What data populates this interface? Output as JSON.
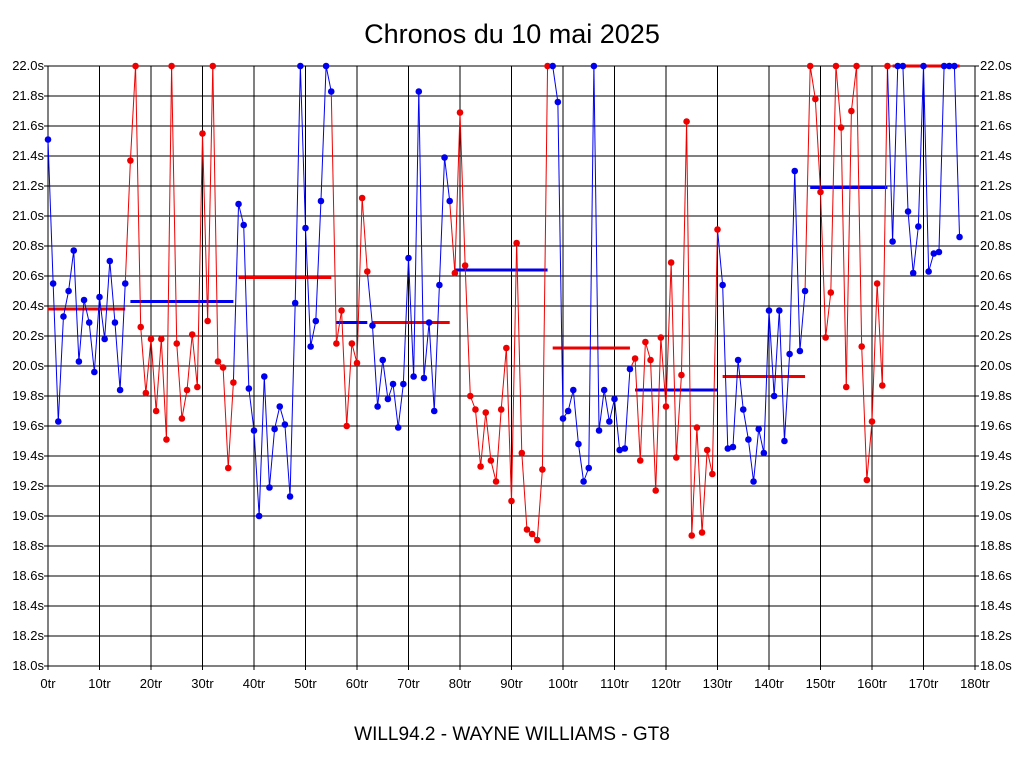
{
  "chart_data": {
    "type": "line",
    "title": "Chronos du 10 mai 2025",
    "footer": "WILL94.2 - WAYNE WILLIAMS - GT8",
    "xlim": [
      0,
      180
    ],
    "ylim": [
      18.0,
      22.0
    ],
    "x_ticks": [
      0,
      10,
      20,
      30,
      40,
      50,
      60,
      70,
      80,
      90,
      100,
      110,
      120,
      130,
      140,
      150,
      160,
      170,
      180
    ],
    "x_tick_labels": [
      "0tr",
      "10tr",
      "20tr",
      "30tr",
      "40tr",
      "50tr",
      "60tr",
      "70tr",
      "80tr",
      "90tr",
      "100tr",
      "110tr",
      "120tr",
      "130tr",
      "140tr",
      "150tr",
      "160tr",
      "170tr",
      "180tr"
    ],
    "y_ticks": [
      18.0,
      18.2,
      18.4,
      18.6,
      18.8,
      19.0,
      19.2,
      19.4,
      19.6,
      19.8,
      20.0,
      20.2,
      20.4,
      20.6,
      20.8,
      21.0,
      21.2,
      21.4,
      21.6,
      21.8,
      22.0
    ],
    "y_tick_labels": [
      "18.0s",
      "18.2s",
      "18.4s",
      "18.6s",
      "18.8s",
      "19.0s",
      "19.2s",
      "19.4s",
      "19.6s",
      "19.8s",
      "20.0s",
      "20.2s",
      "20.4s",
      "20.6s",
      "20.8s",
      "21.0s",
      "21.2s",
      "21.4s",
      "21.6s",
      "21.8s",
      "22.0s"
    ],
    "grid": true,
    "colors": {
      "blue": "#0000ee",
      "red": "#ee0000",
      "grid": "#000000"
    },
    "series": [
      {
        "name": "stint-1",
        "color": "blue",
        "points": [
          [
            0,
            21.51
          ],
          [
            1,
            20.55
          ],
          [
            2,
            19.63
          ],
          [
            3,
            20.33
          ],
          [
            4,
            20.5
          ],
          [
            5,
            20.77
          ],
          [
            6,
            20.03
          ],
          [
            7,
            20.44
          ],
          [
            8,
            20.29
          ],
          [
            9,
            19.96
          ],
          [
            10,
            20.46
          ],
          [
            11,
            20.18
          ],
          [
            12,
            20.7
          ],
          [
            13,
            20.29
          ],
          [
            14,
            19.84
          ],
          [
            15,
            20.55
          ]
        ]
      },
      {
        "name": "stint-2",
        "color": "red",
        "points": [
          [
            16,
            21.37
          ],
          [
            17,
            22.0
          ],
          [
            18,
            20.26
          ],
          [
            19,
            19.82
          ],
          [
            20,
            20.18
          ],
          [
            21,
            19.7
          ],
          [
            22,
            20.18
          ],
          [
            23,
            19.51
          ],
          [
            24,
            22.0
          ],
          [
            25,
            20.15
          ],
          [
            26,
            19.65
          ],
          [
            27,
            19.84
          ],
          [
            28,
            20.21
          ],
          [
            29,
            19.86
          ],
          [
            30,
            21.55
          ],
          [
            31,
            20.3
          ],
          [
            32,
            22.0
          ],
          [
            33,
            20.03
          ],
          [
            34,
            19.99
          ],
          [
            35,
            19.32
          ],
          [
            36,
            19.89
          ]
        ]
      },
      {
        "name": "stint-3",
        "color": "blue",
        "points": [
          [
            37,
            21.08
          ],
          [
            38,
            20.94
          ],
          [
            39,
            19.85
          ],
          [
            40,
            19.57
          ],
          [
            41,
            19.0
          ],
          [
            42,
            19.93
          ],
          [
            43,
            19.19
          ],
          [
            44,
            19.58
          ],
          [
            45,
            19.73
          ],
          [
            46,
            19.61
          ],
          [
            47,
            19.13
          ],
          [
            48,
            20.42
          ],
          [
            49,
            22.0
          ],
          [
            50,
            20.92
          ],
          [
            51,
            20.13
          ],
          [
            52,
            20.3
          ],
          [
            53,
            21.1
          ],
          [
            54,
            22.0
          ],
          [
            55,
            21.83
          ]
        ]
      },
      {
        "name": "stint-4",
        "color": "red",
        "points": [
          [
            56,
            20.15
          ],
          [
            57,
            20.37
          ],
          [
            58,
            19.6
          ],
          [
            59,
            20.15
          ],
          [
            60,
            20.02
          ],
          [
            61,
            21.12
          ],
          [
            62,
            20.63
          ]
        ]
      },
      {
        "name": "stint-5",
        "color": "blue",
        "points": [
          [
            63,
            20.27
          ],
          [
            64,
            19.73
          ],
          [
            65,
            20.04
          ],
          [
            66,
            19.78
          ],
          [
            67,
            19.88
          ],
          [
            68,
            19.59
          ],
          [
            69,
            19.88
          ],
          [
            70,
            20.72
          ],
          [
            71,
            19.93
          ],
          [
            72,
            21.83
          ],
          [
            73,
            19.92
          ],
          [
            74,
            20.29
          ],
          [
            75,
            19.7
          ],
          [
            76,
            20.54
          ],
          [
            77,
            21.39
          ],
          [
            78,
            21.1
          ]
        ]
      },
      {
        "name": "stint-6",
        "color": "red",
        "points": [
          [
            79,
            20.62
          ],
          [
            80,
            21.69
          ],
          [
            81,
            20.67
          ],
          [
            82,
            19.8
          ],
          [
            83,
            19.71
          ],
          [
            84,
            19.33
          ],
          [
            85,
            19.69
          ],
          [
            86,
            19.37
          ],
          [
            87,
            19.23
          ],
          [
            88,
            19.71
          ],
          [
            89,
            20.12
          ],
          [
            90,
            19.1
          ],
          [
            91,
            20.82
          ],
          [
            92,
            19.42
          ],
          [
            93,
            18.91
          ],
          [
            94,
            18.88
          ],
          [
            95,
            18.84
          ],
          [
            96,
            19.31
          ],
          [
            97,
            22.0
          ]
        ]
      },
      {
        "name": "stint-7",
        "color": "blue",
        "points": [
          [
            98,
            22.0
          ],
          [
            99,
            21.76
          ],
          [
            100,
            19.65
          ],
          [
            101,
            19.7
          ],
          [
            102,
            19.84
          ],
          [
            103,
            19.48
          ],
          [
            104,
            19.23
          ],
          [
            105,
            19.32
          ],
          [
            106,
            22.0
          ],
          [
            107,
            19.57
          ],
          [
            108,
            19.84
          ],
          [
            109,
            19.63
          ],
          [
            110,
            19.78
          ],
          [
            111,
            19.44
          ],
          [
            112,
            19.45
          ],
          [
            113,
            19.98
          ]
        ]
      },
      {
        "name": "stint-8",
        "color": "red",
        "points": [
          [
            114,
            20.05
          ],
          [
            115,
            19.37
          ],
          [
            116,
            20.16
          ],
          [
            117,
            20.04
          ],
          [
            118,
            19.17
          ],
          [
            119,
            20.19
          ],
          [
            120,
            19.73
          ],
          [
            121,
            20.69
          ],
          [
            122,
            19.39
          ],
          [
            123,
            19.94
          ],
          [
            124,
            21.63
          ],
          [
            125,
            18.87
          ],
          [
            126,
            19.59
          ],
          [
            127,
            18.89
          ],
          [
            128,
            19.44
          ],
          [
            129,
            19.28
          ],
          [
            130,
            20.91
          ]
        ]
      },
      {
        "name": "stint-9",
        "color": "blue",
        "points": [
          [
            131,
            20.54
          ],
          [
            132,
            19.45
          ],
          [
            133,
            19.46
          ],
          [
            134,
            20.04
          ],
          [
            135,
            19.71
          ],
          [
            136,
            19.51
          ],
          [
            137,
            19.23
          ],
          [
            138,
            19.58
          ],
          [
            139,
            19.42
          ],
          [
            140,
            20.37
          ],
          [
            141,
            19.8
          ],
          [
            142,
            20.37
          ],
          [
            143,
            19.5
          ],
          [
            144,
            20.08
          ],
          [
            145,
            21.3
          ],
          [
            146,
            20.1
          ],
          [
            147,
            20.5
          ]
        ]
      },
      {
        "name": "stint-10",
        "color": "red",
        "points": [
          [
            148,
            22.0
          ],
          [
            149,
            21.78
          ],
          [
            150,
            21.16
          ],
          [
            151,
            20.19
          ],
          [
            152,
            20.49
          ],
          [
            153,
            22.0
          ],
          [
            154,
            21.59
          ],
          [
            155,
            19.86
          ],
          [
            156,
            21.7
          ],
          [
            157,
            22.0
          ],
          [
            158,
            20.13
          ],
          [
            159,
            19.24
          ],
          [
            160,
            19.63
          ],
          [
            161,
            20.55
          ],
          [
            162,
            19.87
          ],
          [
            163,
            22.0
          ]
        ]
      },
      {
        "name": "stint-11",
        "color": "blue",
        "points": [
          [
            164,
            20.83
          ],
          [
            165,
            22.0
          ],
          [
            166,
            22.0
          ],
          [
            167,
            21.03
          ],
          [
            168,
            20.62
          ],
          [
            169,
            20.93
          ],
          [
            170,
            22.0
          ],
          [
            171,
            20.63
          ],
          [
            172,
            20.75
          ],
          [
            173,
            20.76
          ],
          [
            174,
            22.0
          ],
          [
            175,
            22.0
          ],
          [
            176,
            22.0
          ],
          [
            177,
            20.86
          ]
        ]
      }
    ],
    "averages": [
      {
        "color": "red",
        "x_start": 0,
        "x_end": 15,
        "value": 20.38
      },
      {
        "color": "blue",
        "x_start": 16,
        "x_end": 36,
        "value": 20.43
      },
      {
        "color": "red",
        "x_start": 37,
        "x_end": 55,
        "value": 20.59
      },
      {
        "color": "blue",
        "x_start": 56,
        "x_end": 62,
        "value": 20.29
      },
      {
        "color": "red",
        "x_start": 63,
        "x_end": 78,
        "value": 20.29
      },
      {
        "color": "blue",
        "x_start": 79,
        "x_end": 97,
        "value": 20.64
      },
      {
        "color": "red",
        "x_start": 98,
        "x_end": 113,
        "value": 20.12
      },
      {
        "color": "blue",
        "x_start": 114,
        "x_end": 130,
        "value": 19.84
      },
      {
        "color": "red",
        "x_start": 131,
        "x_end": 147,
        "value": 19.93
      },
      {
        "color": "blue",
        "x_start": 148,
        "x_end": 163,
        "value": 21.19
      },
      {
        "color": "red",
        "x_start": 164,
        "x_end": 177,
        "value": 22.0
      }
    ]
  }
}
